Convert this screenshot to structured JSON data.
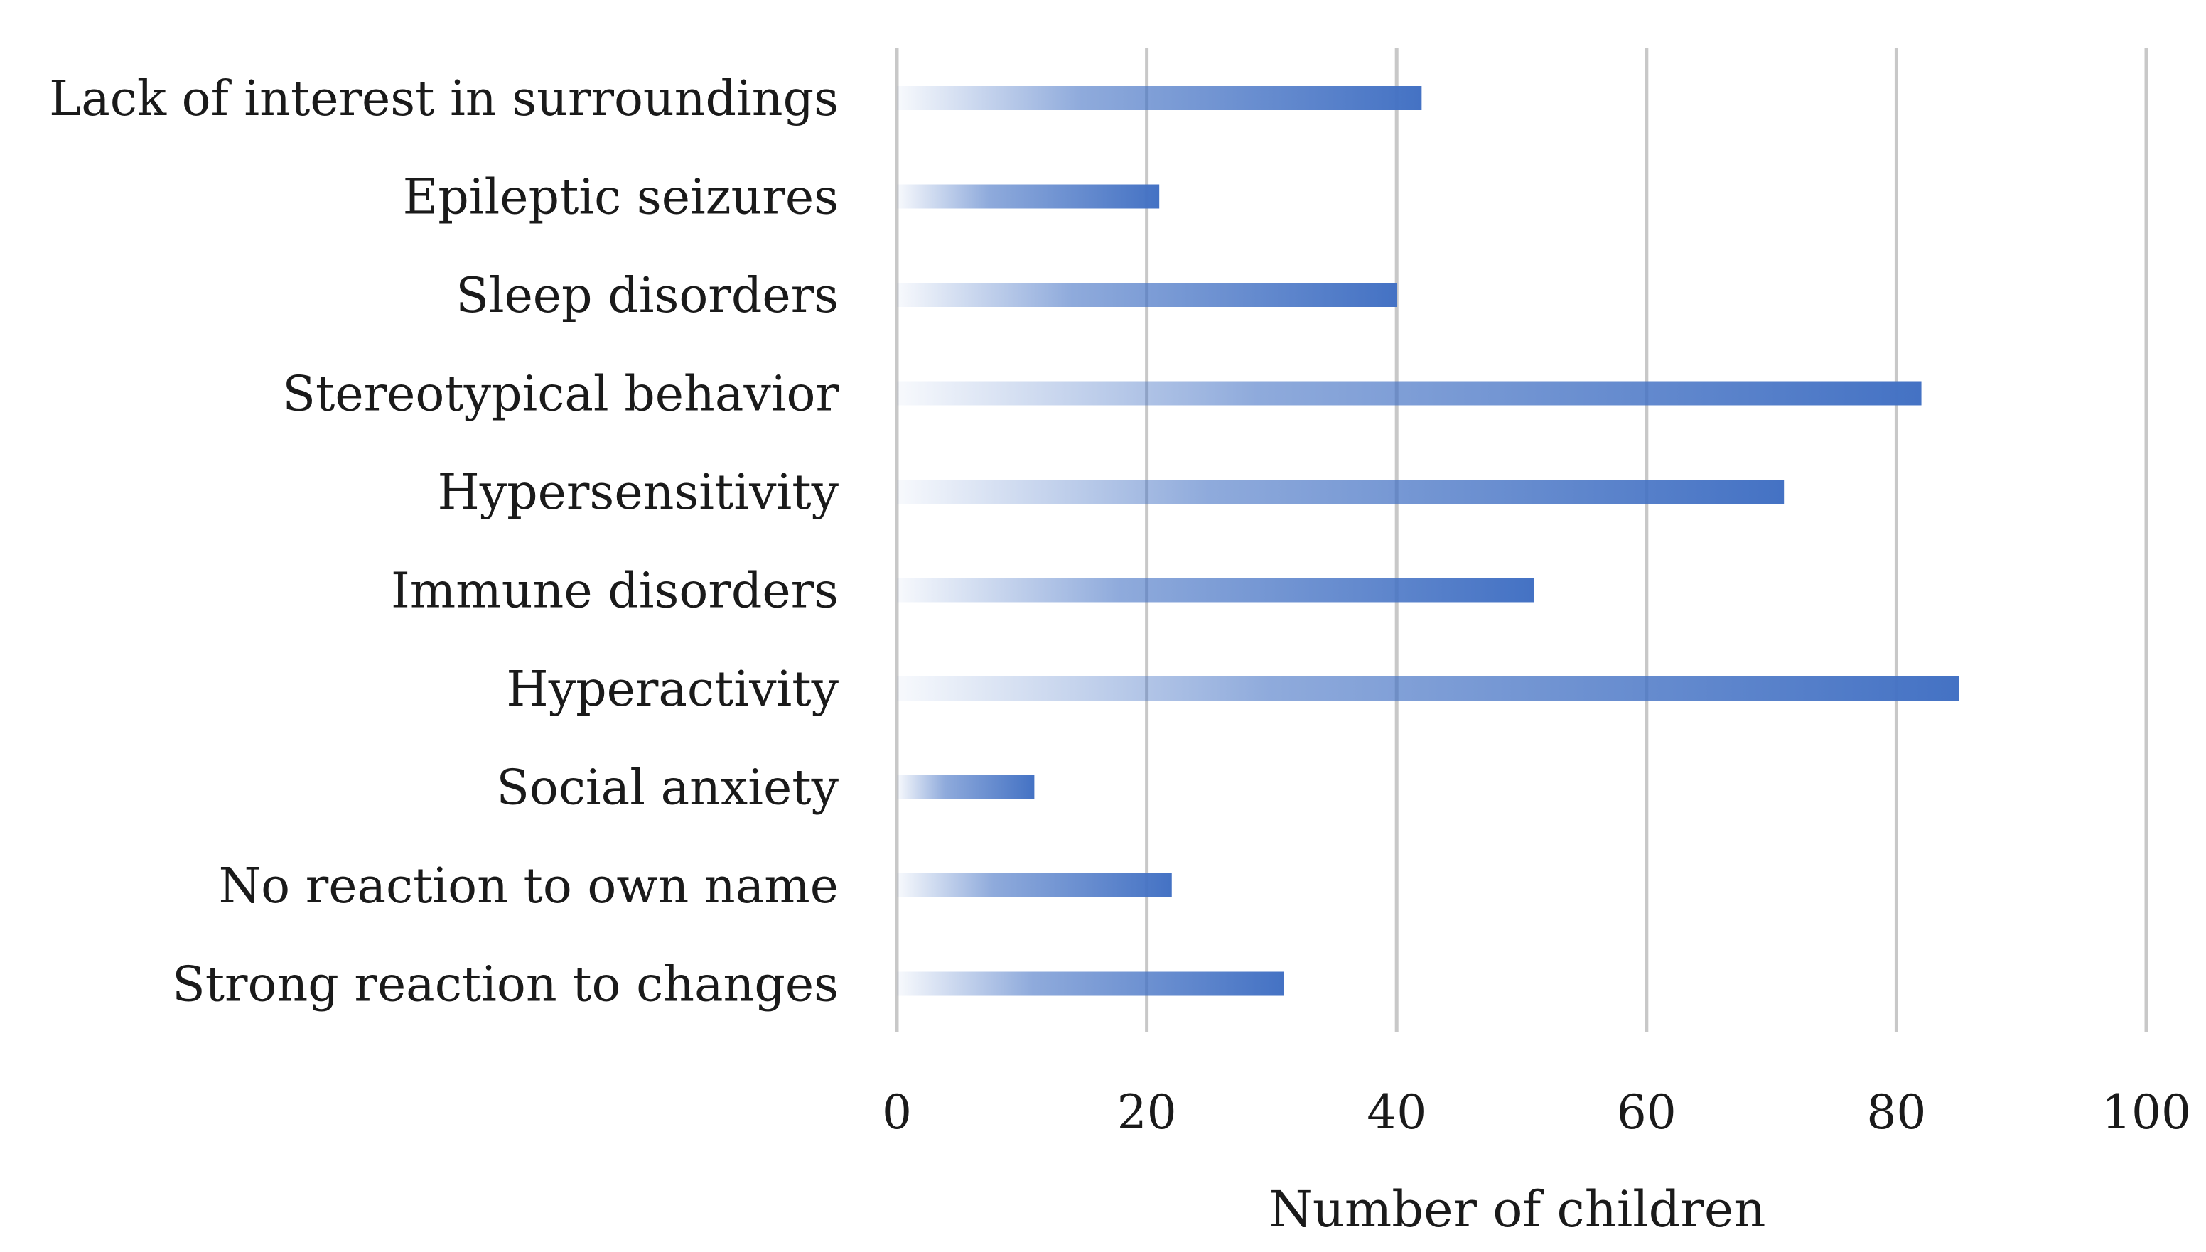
{
  "chart_data": {
    "type": "bar",
    "orientation": "horizontal",
    "categories": [
      "Lack of interest in surroundings",
      "Epileptic seizures",
      "Sleep disorders",
      "Stereotypical behavior",
      "Hypersensitivity",
      "Immune disorders",
      "Hyperactivity",
      "Social anxiety",
      "No reaction to own name",
      "Strong reaction to changes"
    ],
    "values": [
      42,
      21,
      40,
      82,
      71,
      51,
      85,
      11,
      22,
      31
    ],
    "title": "",
    "xlabel": "Number of children",
    "ylabel": "",
    "xlim": [
      0,
      100
    ],
    "xticks": [
      "0",
      "20",
      "40",
      "60",
      "80",
      "100"
    ],
    "grid": "vertical",
    "bar_color": "#4472c4"
  }
}
